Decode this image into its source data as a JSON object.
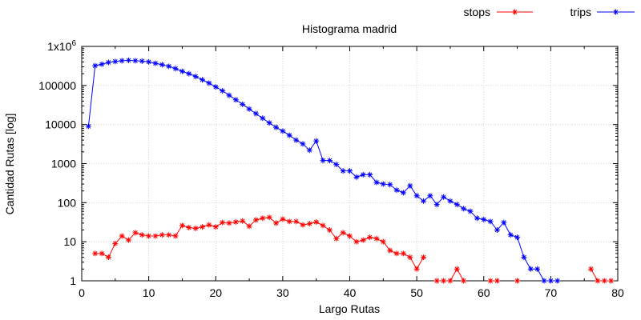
{
  "chart_data": {
    "type": "line",
    "title": "Histograma madrid",
    "xlabel": "Largo Rutas",
    "ylabel": "Cantidad Rutas [log]",
    "y_scale": "log",
    "xlim": [
      0,
      80
    ],
    "ylim": [
      1,
      1000000
    ],
    "grid": true,
    "legend_position": "top-right",
    "x_tick_labels": [
      "0",
      "10",
      "20",
      "30",
      "40",
      "50",
      "60",
      "70",
      "80"
    ],
    "x_ticks": [
      0,
      10,
      20,
      30,
      40,
      50,
      60,
      70,
      80
    ],
    "y_tick_labels": [
      "1",
      "10",
      "100",
      "1000",
      "10000",
      "100000",
      "1x10^6"
    ],
    "y_ticks": [
      1,
      10,
      100,
      1000,
      10000,
      100000,
      1000000
    ],
    "series": [
      {
        "name": "stops",
        "color": "#ff0000",
        "marker": "asterisk",
        "segments": [
          [
            [
              2,
              5
            ],
            [
              3,
              5
            ],
            [
              4,
              4
            ],
            [
              5,
              9
            ],
            [
              6,
              14
            ],
            [
              7,
              11
            ],
            [
              8,
              17
            ],
            [
              9,
              15
            ],
            [
              10,
              14
            ],
            [
              11,
              14
            ],
            [
              12,
              15
            ],
            [
              13,
              15
            ],
            [
              14,
              14
            ],
            [
              15,
              26
            ],
            [
              16,
              23
            ],
            [
              17,
              22
            ],
            [
              18,
              24
            ],
            [
              19,
              27
            ],
            [
              20,
              24
            ],
            [
              21,
              31
            ],
            [
              22,
              30
            ],
            [
              23,
              32
            ],
            [
              24,
              34
            ],
            [
              25,
              25
            ],
            [
              26,
              36
            ],
            [
              27,
              40
            ],
            [
              28,
              42
            ],
            [
              29,
              30
            ],
            [
              30,
              38
            ],
            [
              31,
              33
            ],
            [
              32,
              33
            ],
            [
              33,
              27
            ],
            [
              34,
              29
            ],
            [
              35,
              32
            ],
            [
              36,
              26
            ],
            [
              37,
              20
            ],
            [
              38,
              12
            ],
            [
              39,
              17
            ],
            [
              40,
              14
            ],
            [
              41,
              10
            ],
            [
              42,
              11
            ],
            [
              43,
              13
            ],
            [
              44,
              12
            ],
            [
              45,
              10
            ],
            [
              46,
              6
            ],
            [
              47,
              5
            ],
            [
              48,
              5
            ],
            [
              49,
              4
            ],
            [
              50,
              2
            ],
            [
              51,
              4
            ]
          ],
          [
            [
              53,
              1
            ],
            [
              54,
              1
            ],
            [
              55,
              1
            ],
            [
              56,
              2
            ],
            [
              57,
              1
            ]
          ],
          [
            [
              61,
              1
            ],
            [
              62,
              1
            ]
          ],
          [
            [
              65,
              1
            ]
          ],
          [
            [
              76,
              2
            ],
            [
              77,
              1
            ],
            [
              78,
              1
            ],
            [
              79,
              1
            ]
          ]
        ]
      },
      {
        "name": "trips",
        "color": "#0000ff",
        "marker": "asterisk",
        "segments": [
          [
            [
              1,
              9000
            ],
            [
              2,
              320000
            ],
            [
              3,
              350000
            ],
            [
              4,
              390000
            ],
            [
              5,
              410000
            ],
            [
              6,
              430000
            ],
            [
              7,
              440000
            ],
            [
              8,
              430000
            ],
            [
              9,
              420000
            ],
            [
              10,
              400000
            ],
            [
              11,
              370000
            ],
            [
              12,
              340000
            ],
            [
              13,
              310000
            ],
            [
              14,
              270000
            ],
            [
              15,
              230000
            ],
            [
              16,
              200000
            ],
            [
              17,
              170000
            ],
            [
              18,
              140000
            ],
            [
              19,
              115000
            ],
            [
              20,
              92000
            ],
            [
              21,
              73000
            ],
            [
              22,
              56000
            ],
            [
              23,
              43000
            ],
            [
              24,
              33000
            ],
            [
              25,
              25000
            ],
            [
              26,
              19000
            ],
            [
              27,
              14500
            ],
            [
              28,
              11000
            ],
            [
              29,
              8500
            ],
            [
              30,
              6800
            ],
            [
              31,
              5300
            ],
            [
              32,
              4000
            ],
            [
              33,
              3200
            ],
            [
              34,
              2200
            ],
            [
              35,
              3800
            ],
            [
              36,
              1200
            ],
            [
              37,
              1200
            ],
            [
              38,
              950
            ],
            [
              39,
              650
            ],
            [
              40,
              650
            ],
            [
              41,
              450
            ],
            [
              42,
              520
            ],
            [
              43,
              520
            ],
            [
              44,
              330
            ],
            [
              45,
              300
            ],
            [
              46,
              290
            ],
            [
              47,
              210
            ],
            [
              48,
              180
            ],
            [
              49,
              270
            ],
            [
              50,
              150
            ],
            [
              51,
              110
            ],
            [
              52,
              150
            ],
            [
              53,
              90
            ],
            [
              54,
              140
            ],
            [
              55,
              110
            ],
            [
              56,
              90
            ],
            [
              57,
              70
            ],
            [
              58,
              60
            ],
            [
              59,
              40
            ],
            [
              60,
              37
            ],
            [
              61,
              33
            ],
            [
              62,
              20
            ],
            [
              63,
              31
            ],
            [
              64,
              15
            ],
            [
              65,
              13
            ],
            [
              66,
              4
            ],
            [
              67,
              2
            ],
            [
              68,
              2
            ],
            [
              69,
              1
            ],
            [
              70,
              1
            ],
            [
              71,
              1
            ]
          ]
        ]
      }
    ]
  }
}
